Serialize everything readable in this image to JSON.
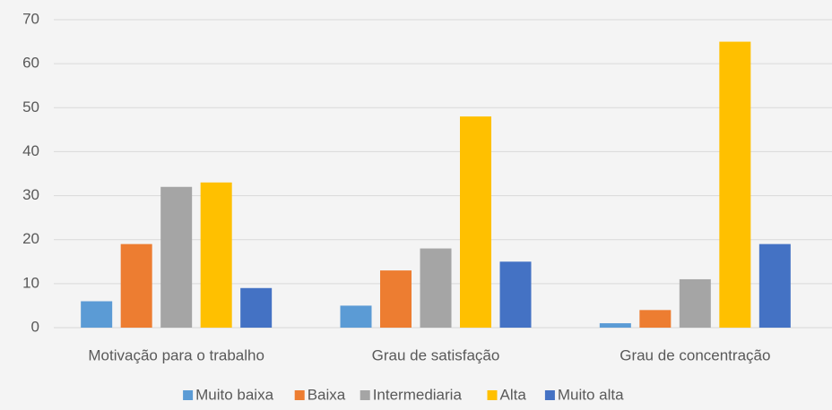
{
  "chart_data": {
    "type": "bar",
    "categories": [
      "Motivação para o trabalho",
      "Grau de satisfação",
      "Grau de concentração"
    ],
    "series": [
      {
        "name": "Muito baixa",
        "color": "#5b9bd5",
        "values": [
          6,
          5,
          1
        ]
      },
      {
        "name": "Baixa",
        "color": "#ed7d31",
        "values": [
          19,
          13,
          4
        ]
      },
      {
        "name": "Intermediaria",
        "color": "#a5a5a5",
        "values": [
          32,
          18,
          11
        ]
      },
      {
        "name": "Alta",
        "color": "#ffc000",
        "values": [
          33,
          48,
          65
        ]
      },
      {
        "name": "Muito alta",
        "color": "#4472c4",
        "values": [
          9,
          15,
          19
        ]
      }
    ],
    "ylim": [
      0,
      70
    ],
    "yticks": [
      0,
      10,
      20,
      30,
      40,
      50,
      60,
      70
    ],
    "grid": true,
    "legend": "bottom"
  }
}
